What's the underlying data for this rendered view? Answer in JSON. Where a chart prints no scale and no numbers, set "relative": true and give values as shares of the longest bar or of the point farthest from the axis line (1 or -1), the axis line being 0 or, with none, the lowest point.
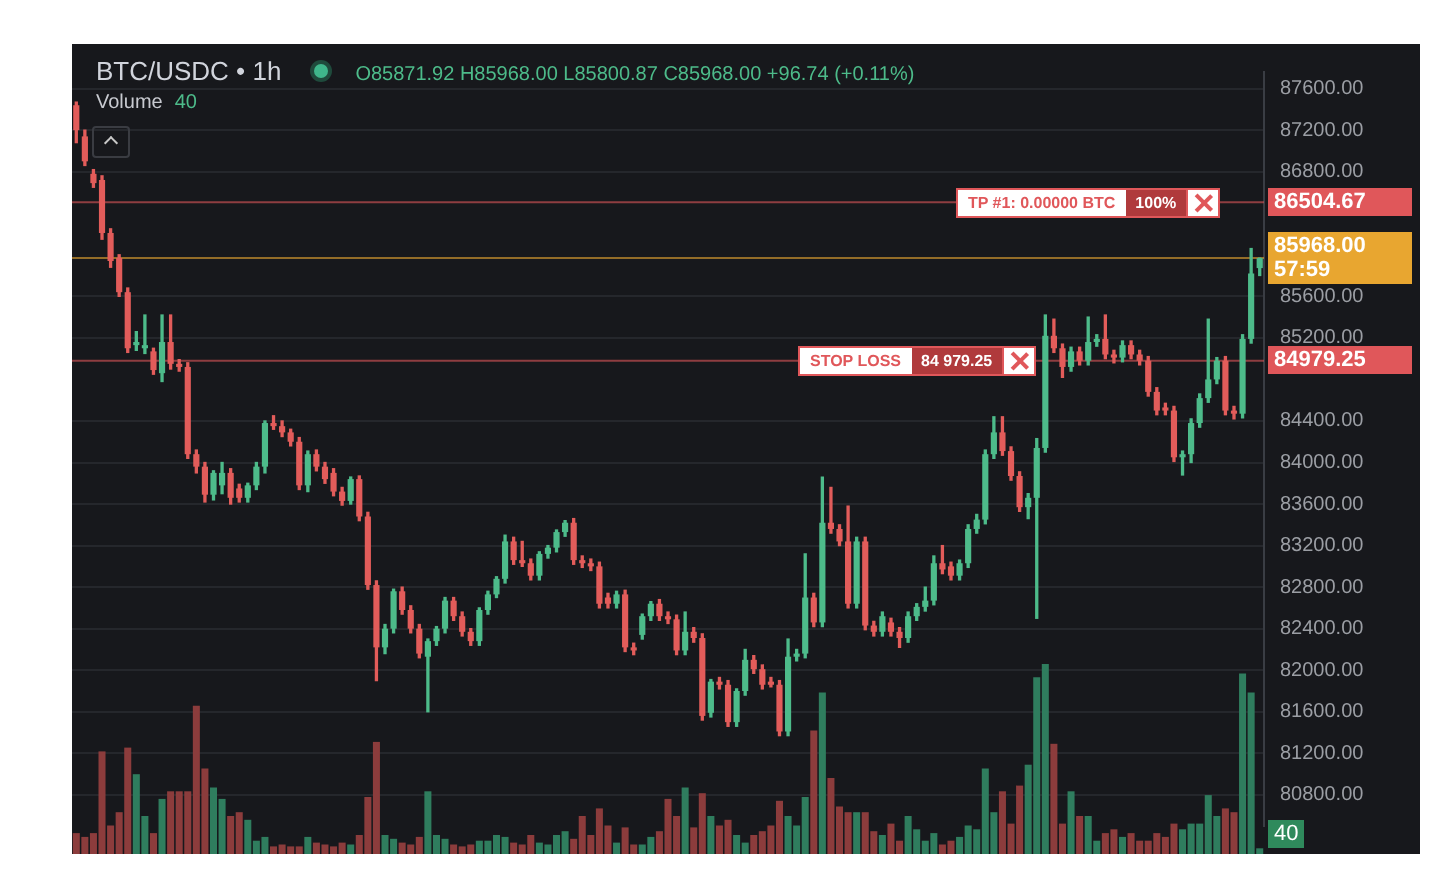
{
  "chart_data": [
    {
      "type": "candlestick",
      "title": "BTC/USDC • 1h",
      "subtitle": "O85871.92 H85968.00 L85800.87 C85968.00 +96.74 (+0.11%)",
      "categories": [
        null,
        null,
        null,
        null,
        null,
        null,
        null,
        null,
        null,
        null,
        null,
        null,
        null,
        null,
        null,
        null,
        null,
        null,
        null,
        null,
        null,
        null,
        null,
        null,
        null,
        null,
        null,
        null,
        null,
        null,
        null,
        null,
        null,
        null,
        null,
        null,
        null,
        null,
        null,
        null,
        null,
        null,
        null,
        null,
        null,
        null,
        null,
        null,
        null,
        null,
        null,
        null,
        null,
        null,
        null,
        null,
        null,
        null,
        null,
        null,
        null,
        null,
        null,
        null,
        null,
        null,
        null,
        null,
        null,
        null,
        null,
        null,
        null,
        null,
        null,
        null,
        null,
        null,
        null,
        null,
        null,
        null,
        null,
        null,
        null,
        null,
        null,
        null,
        null,
        null,
        null,
        null,
        null,
        null,
        null,
        null,
        null,
        null,
        null,
        null,
        null,
        null,
        null,
        null,
        null,
        null,
        null,
        null,
        null,
        null,
        null,
        null,
        null,
        null,
        null,
        null,
        null,
        null,
        null,
        null,
        null,
        null,
        null,
        null,
        null,
        null,
        null,
        null,
        null,
        null,
        null,
        null,
        null,
        null,
        null,
        null,
        null,
        null,
        null
      ],
      "ohlc": [
        [
          87440,
          87470,
          87080,
          87200
        ],
        [
          87140,
          87200,
          86860,
          86900
        ],
        [
          86780,
          86820,
          86650,
          86690
        ],
        [
          86720,
          86760,
          86150,
          86210
        ],
        [
          86210,
          86250,
          85880,
          85940
        ],
        [
          85970,
          86000,
          85600,
          85640
        ],
        [
          85640,
          85680,
          85060,
          85100
        ],
        [
          85130,
          85260,
          85080,
          85160
        ],
        [
          85100,
          85420,
          85050,
          85130
        ],
        [
          85070,
          85100,
          84850,
          84890
        ],
        [
          84860,
          85420,
          84780,
          85160
        ],
        [
          85160,
          85420,
          84900,
          84950
        ],
        [
          84950,
          84990,
          84880,
          84920
        ],
        [
          84920,
          84960,
          84040,
          84080
        ],
        [
          84080,
          84120,
          83900,
          83960
        ],
        [
          83960,
          84000,
          83620,
          83690
        ],
        [
          83690,
          83920,
          83640,
          83900
        ],
        [
          83780,
          84000,
          83700,
          83900
        ],
        [
          83900,
          83940,
          83600,
          83660
        ],
        [
          83750,
          83790,
          83620,
          83660
        ],
        [
          83660,
          83800,
          83620,
          83780
        ],
        [
          83780,
          84000,
          83740,
          83960
        ],
        [
          83960,
          84400,
          83900,
          84380
        ],
        [
          84380,
          84450,
          84320,
          84350
        ],
        [
          84350,
          84400,
          84250,
          84290
        ],
        [
          84290,
          84320,
          84160,
          84200
        ],
        [
          84200,
          84240,
          83740,
          83780
        ],
        [
          83780,
          84110,
          83720,
          84080
        ],
        [
          84080,
          84120,
          83920,
          83960
        ],
        [
          83960,
          84000,
          83800,
          83840
        ],
        [
          83900,
          83940,
          83680,
          83720
        ],
        [
          83720,
          83760,
          83590,
          83630
        ],
        [
          83630,
          83860,
          83600,
          83840
        ],
        [
          83840,
          83870,
          83440,
          83480
        ],
        [
          83480,
          83520,
          82780,
          82820
        ],
        [
          82820,
          82860,
          81900,
          82220
        ],
        [
          82220,
          82440,
          82160,
          82400
        ],
        [
          82400,
          82780,
          82360,
          82760
        ],
        [
          82760,
          82800,
          82540,
          82580
        ],
        [
          82580,
          82620,
          82360,
          82400
        ],
        [
          82400,
          82440,
          82120,
          82160
        ],
        [
          82130,
          82300,
          81600,
          82280
        ],
        [
          82280,
          82420,
          82240,
          82400
        ],
        [
          82400,
          82700,
          82360,
          82670
        ],
        [
          82670,
          82700,
          82480,
          82520
        ],
        [
          82520,
          82560,
          82330,
          82370
        ],
        [
          82370,
          82400,
          82240,
          82280
        ],
        [
          82280,
          82600,
          82240,
          82580
        ],
        [
          82580,
          82760,
          82540,
          82730
        ],
        [
          82730,
          82900,
          82700,
          82880
        ],
        [
          82880,
          83300,
          82840,
          83240
        ],
        [
          83240,
          83280,
          83020,
          83060
        ],
        [
          83060,
          83240,
          83000,
          83030
        ],
        [
          83030,
          83070,
          82870,
          82910
        ],
        [
          82910,
          83140,
          82870,
          83120
        ],
        [
          83120,
          83200,
          83080,
          83180
        ],
        [
          83180,
          83350,
          83140,
          83330
        ],
        [
          83330,
          83440,
          83290,
          83420
        ],
        [
          83420,
          83460,
          83020,
          83060
        ],
        [
          83060,
          83100,
          82990,
          83030
        ],
        [
          83030,
          83070,
          82960,
          83000
        ],
        [
          83000,
          83040,
          82600,
          82640
        ],
        [
          82700,
          82740,
          82600,
          82640
        ],
        [
          82640,
          82760,
          82600,
          82730
        ],
        [
          82730,
          82770,
          82180,
          82220
        ],
        [
          82220,
          82260,
          82150,
          82190
        ],
        [
          82340,
          82540,
          82300,
          82520
        ],
        [
          82520,
          82660,
          82480,
          82640
        ],
        [
          82640,
          82680,
          82480,
          82520
        ],
        [
          82520,
          82560,
          82450,
          82490
        ],
        [
          82490,
          82530,
          82150,
          82190
        ],
        [
          82190,
          82560,
          82150,
          82370
        ],
        [
          82370,
          82410,
          82270,
          82310
        ],
        [
          82310,
          82350,
          81520,
          81560
        ],
        [
          81590,
          81910,
          81550,
          81890
        ],
        [
          81890,
          81930,
          81820,
          81860
        ],
        [
          81860,
          81900,
          81460,
          81500
        ],
        [
          81500,
          81820,
          81460,
          81800
        ],
        [
          81800,
          82200,
          81760,
          82100
        ],
        [
          82100,
          82140,
          81970,
          82010
        ],
        [
          82010,
          82050,
          81820,
          81860
        ],
        [
          81890,
          81930,
          81840,
          81860
        ],
        [
          81860,
          81900,
          81370,
          81410
        ],
        [
          81410,
          82300,
          81370,
          82130
        ],
        [
          82130,
          82200,
          82090,
          82160
        ],
        [
          82160,
          83120,
          82120,
          82700
        ],
        [
          82700,
          82740,
          82420,
          82460
        ],
        [
          82460,
          83860,
          82420,
          83420
        ],
        [
          83420,
          83760,
          83320,
          83360
        ],
        [
          83360,
          83400,
          83200,
          83240
        ],
        [
          83240,
          83580,
          82600,
          82640
        ],
        [
          82640,
          83280,
          82600,
          83240
        ],
        [
          83240,
          83280,
          82390,
          82430
        ],
        [
          82430,
          82470,
          82330,
          82370
        ],
        [
          82370,
          82560,
          82330,
          82520
        ],
        [
          82460,
          82500,
          82330,
          82370
        ],
        [
          82370,
          82410,
          82220,
          82310
        ],
        [
          82310,
          82560,
          82270,
          82520
        ],
        [
          82520,
          82640,
          82480,
          82610
        ],
        [
          82610,
          82800,
          82570,
          82670
        ],
        [
          82670,
          83100,
          82630,
          83030
        ],
        [
          83030,
          83200,
          82930,
          82970
        ],
        [
          83000,
          83040,
          82870,
          82910
        ],
        [
          82910,
          83060,
          82870,
          83030
        ],
        [
          83030,
          83400,
          82990,
          83360
        ],
        [
          83360,
          83500,
          83320,
          83450
        ],
        [
          83450,
          84120,
          83410,
          84080
        ],
        [
          84080,
          84440,
          84040,
          84290
        ],
        [
          84290,
          84440,
          84070,
          84110
        ],
        [
          84110,
          84150,
          83830,
          83870
        ],
        [
          83870,
          83910,
          83530,
          83570
        ],
        [
          83570,
          83700,
          83460,
          83660
        ],
        [
          83660,
          84230,
          82500,
          84140
        ],
        [
          84140,
          85420,
          84100,
          85220
        ],
        [
          85220,
          85380,
          85060,
          85100
        ],
        [
          85100,
          85140,
          84820,
          84920
        ],
        [
          84920,
          85110,
          84880,
          85070
        ],
        [
          85070,
          85110,
          84940,
          84980
        ],
        [
          84980,
          85400,
          84940,
          85160
        ],
        [
          85160,
          85230,
          85120,
          85190
        ],
        [
          85190,
          85420,
          85000,
          85040
        ],
        [
          85040,
          85080,
          84960,
          85010
        ],
        [
          85010,
          85170,
          84970,
          85130
        ],
        [
          85130,
          85170,
          85000,
          85040
        ],
        [
          85040,
          85080,
          84940,
          84980
        ],
        [
          84980,
          85020,
          84640,
          84680
        ],
        [
          84680,
          84720,
          84460,
          84500
        ],
        [
          84530,
          84570,
          84460,
          84500
        ],
        [
          84500,
          84540,
          84010,
          84050
        ],
        [
          84050,
          84110,
          83880,
          84080
        ],
        [
          84080,
          84420,
          84000,
          84380
        ],
        [
          84380,
          84660,
          84340,
          84620
        ],
        [
          84620,
          85380,
          84580,
          84800
        ],
        [
          84800,
          85010,
          84760,
          84980
        ],
        [
          84980,
          85020,
          84460,
          84500
        ],
        [
          84500,
          84540,
          84420,
          84470
        ],
        [
          84470,
          85230,
          84430,
          85190
        ],
        [
          85190,
          86060,
          85150,
          85820
        ],
        [
          85871.92,
          85968,
          85800.87,
          85968
        ]
      ],
      "colors": [
        "#e25c5a",
        "#e25c5a",
        "#e25c5a",
        "#e25c5a",
        "#e25c5a",
        "#e25c5a",
        "#e25c5a",
        "#4dbb8a",
        "#4dbb8a",
        "#e25c5a",
        "#4dbb8a",
        "#e25c5a",
        "#e25c5a",
        "#e25c5a",
        "#e25c5a",
        "#e25c5a",
        "#4dbb8a",
        "#4dbb8a",
        "#e25c5a",
        "#e25c5a",
        "#4dbb8a",
        "#4dbb8a",
        "#4dbb8a",
        "#e25c5a",
        "#e25c5a",
        "#e25c5a",
        "#e25c5a",
        "#4dbb8a",
        "#e25c5a",
        "#e25c5a",
        "#e25c5a",
        "#e25c5a",
        "#4dbb8a",
        "#e25c5a",
        "#e25c5a",
        "#e25c5a",
        "#4dbb8a",
        "#4dbb8a",
        "#e25c5a",
        "#e25c5a",
        "#e25c5a",
        "#4dbb8a",
        "#4dbb8a",
        "#4dbb8a",
        "#e25c5a",
        "#e25c5a",
        "#e25c5a",
        "#4dbb8a",
        "#4dbb8a",
        "#4dbb8a",
        "#4dbb8a",
        "#e25c5a",
        "#e25c5a",
        "#e25c5a",
        "#4dbb8a",
        "#4dbb8a",
        "#4dbb8a",
        "#4dbb8a",
        "#e25c5a",
        "#e25c5a",
        "#e25c5a",
        "#e25c5a",
        "#e25c5a",
        "#4dbb8a",
        "#e25c5a",
        "#e25c5a",
        "#4dbb8a",
        "#4dbb8a",
        "#e25c5a",
        "#e25c5a",
        "#e25c5a",
        "#4dbb8a",
        "#e25c5a",
        "#e25c5a",
        "#4dbb8a",
        "#e25c5a",
        "#e25c5a",
        "#4dbb8a",
        "#4dbb8a",
        "#e25c5a",
        "#e25c5a",
        "#e25c5a",
        "#e25c5a",
        "#4dbb8a",
        "#4dbb8a",
        "#4dbb8a",
        "#e25c5a",
        "#4dbb8a",
        "#e25c5a",
        "#e25c5a",
        "#e25c5a",
        "#4dbb8a",
        "#e25c5a",
        "#e25c5a",
        "#4dbb8a",
        "#e25c5a",
        "#e25c5a",
        "#4dbb8a",
        "#4dbb8a",
        "#4dbb8a",
        "#4dbb8a",
        "#e25c5a",
        "#e25c5a",
        "#4dbb8a",
        "#4dbb8a",
        "#4dbb8a",
        "#4dbb8a",
        "#4dbb8a",
        "#e25c5a",
        "#e25c5a",
        "#e25c5a",
        "#4dbb8a",
        "#4dbb8a",
        "#4dbb8a",
        "#e25c5a",
        "#e25c5a",
        "#4dbb8a",
        "#e25c5a",
        "#4dbb8a",
        "#4dbb8a",
        "#e25c5a",
        "#e25c5a",
        "#4dbb8a",
        "#e25c5a",
        "#e25c5a",
        "#e25c5a",
        "#e25c5a",
        "#e25c5a",
        "#e25c5a",
        "#4dbb8a",
        "#4dbb8a",
        "#4dbb8a",
        "#4dbb8a",
        "#4dbb8a",
        "#e25c5a",
        "#e25c5a",
        "#4dbb8a",
        "#4dbb8a",
        "#4dbb8a"
      ],
      "ylim": [
        80500,
        87760
      ],
      "yticks": [
        {
          "value": 80800,
          "label": "80800.00"
        },
        {
          "value": 81200,
          "label": "81200.00"
        },
        {
          "value": 81600,
          "label": "81600.00"
        },
        {
          "value": 82000,
          "label": "82000.00"
        },
        {
          "value": 82400,
          "label": "82400.00"
        },
        {
          "value": 82800,
          "label": "82800.00"
        },
        {
          "value": 83200,
          "label": "83200.00"
        },
        {
          "value": 83600,
          "label": "83600.00"
        },
        {
          "value": 84000,
          "label": "84000.00"
        },
        {
          "value": 84400,
          "label": "84400.00"
        },
        {
          "value": 85200,
          "label": "85200.00"
        },
        {
          "value": 85600,
          "label": "85600.00"
        },
        {
          "value": 86800,
          "label": "86800.00"
        },
        {
          "value": 87200,
          "label": "87200.00"
        },
        {
          "value": 87600,
          "label": "87600.00"
        }
      ],
      "tick_labels": "y",
      "grid": "y",
      "ref_lines": [
        {
          "axis": "y",
          "value": 86504.67,
          "label": "86504.67",
          "color": "#e0575a"
        },
        {
          "axis": "y",
          "value": 85968,
          "label": "85968.00\n57:59",
          "color": "#e8a630"
        },
        {
          "axis": "y",
          "value": 84979.25,
          "label": "84979.25",
          "color": "#e0575a"
        }
      ],
      "annotations": [
        {
          "text": "TP #1: 0.00000 BTC",
          "y": 86504.67
        },
        {
          "text": "100%",
          "y": 86504.67
        },
        {
          "text": "STOP LOSS",
          "y": 84979.25
        },
        {
          "text": "84 979.25",
          "y": 84979.25
        }
      ]
    },
    {
      "type": "bar",
      "title": "Volume",
      "relative": true,
      "tick_labels": false,
      "categories": [
        null,
        null,
        null,
        null,
        null,
        null,
        null,
        null,
        null,
        null,
        null,
        null,
        null,
        null,
        null,
        null,
        null,
        null,
        null,
        null,
        null,
        null,
        null,
        null,
        null,
        null,
        null,
        null,
        null,
        null,
        null,
        null,
        null,
        null,
        null,
        null,
        null,
        null,
        null,
        null,
        null,
        null,
        null,
        null,
        null,
        null,
        null,
        null,
        null,
        null,
        null,
        null,
        null,
        null,
        null,
        null,
        null,
        null,
        null,
        null,
        null,
        null,
        null,
        null,
        null,
        null,
        null,
        null,
        null,
        null,
        null,
        null,
        null,
        null,
        null,
        null,
        null,
        null,
        null,
        null,
        null,
        null,
        null,
        null,
        null,
        null,
        null,
        null,
        null,
        null,
        null,
        null,
        null,
        null,
        null,
        null,
        null,
        null,
        null,
        null,
        null,
        null,
        null,
        null,
        null,
        null,
        null,
        null,
        null,
        null,
        null,
        null,
        null,
        null,
        null,
        null,
        null,
        null,
        null,
        null,
        null,
        null,
        null,
        null,
        null,
        null,
        null,
        null,
        null,
        null,
        null,
        null,
        null,
        null,
        null,
        null,
        null,
        null,
        null
      ],
      "values": [
        0.11,
        0.09,
        0.11,
        0.54,
        0.15,
        0.22,
        0.56,
        0.42,
        0.2,
        0.11,
        0.29,
        0.33,
        0.33,
        0.33,
        0.78,
        0.45,
        0.35,
        0.29,
        0.2,
        0.22,
        0.18,
        0.07,
        0.09,
        0.04,
        0.05,
        0.04,
        0.04,
        0.09,
        0.06,
        0.05,
        0.04,
        0.06,
        0.05,
        0.1,
        0.3,
        0.59,
        0.1,
        0.08,
        0.06,
        0.05,
        0.09,
        0.33,
        0.1,
        0.08,
        0.05,
        0.04,
        0.05,
        0.07,
        0.07,
        0.1,
        0.09,
        0.06,
        0.05,
        0.1,
        0.06,
        0.05,
        0.1,
        0.12,
        0.08,
        0.2,
        0.1,
        0.24,
        0.15,
        0.06,
        0.14,
        0.05,
        0.05,
        0.09,
        0.12,
        0.29,
        0.2,
        0.35,
        0.14,
        0.32,
        0.2,
        0.15,
        0.18,
        0.1,
        0.06,
        0.1,
        0.12,
        0.15,
        0.28,
        0.2,
        0.15,
        0.3,
        0.65,
        0.85,
        0.4,
        0.25,
        0.22,
        0.22,
        0.22,
        0.12,
        0.1,
        0.16,
        0.07,
        0.2,
        0.13,
        0.07,
        0.11,
        0.05,
        0.07,
        0.09,
        0.15,
        0.13,
        0.45,
        0.22,
        0.33,
        0.16,
        0.36,
        0.47,
        0.93,
        1,
        0.58,
        0.16,
        0.33,
        0.2,
        0.2,
        0.07,
        0.11,
        0.13,
        0.09,
        0.11,
        0.07,
        0.07,
        0.11,
        0.09,
        0.16,
        0.13,
        0.16,
        0.16,
        0.31,
        0.2,
        0.24,
        0.22,
        0.95,
        0.85,
        0.03
      ],
      "colors": [
        "#8c3c3c",
        "#8c3c3c",
        "#8c3c3c",
        "#8c3c3c",
        "#8c3c3c",
        "#8c3c3c",
        "#8c3c3c",
        "#2f7d5e",
        "#2f7d5e",
        "#8c3c3c",
        "#2f7d5e",
        "#8c3c3c",
        "#8c3c3c",
        "#8c3c3c",
        "#8c3c3c",
        "#8c3c3c",
        "#2f7d5e",
        "#2f7d5e",
        "#8c3c3c",
        "#8c3c3c",
        "#2f7d5e",
        "#2f7d5e",
        "#2f7d5e",
        "#8c3c3c",
        "#8c3c3c",
        "#8c3c3c",
        "#8c3c3c",
        "#2f7d5e",
        "#8c3c3c",
        "#8c3c3c",
        "#8c3c3c",
        "#8c3c3c",
        "#2f7d5e",
        "#8c3c3c",
        "#8c3c3c",
        "#8c3c3c",
        "#2f7d5e",
        "#2f7d5e",
        "#8c3c3c",
        "#8c3c3c",
        "#8c3c3c",
        "#2f7d5e",
        "#2f7d5e",
        "#2f7d5e",
        "#8c3c3c",
        "#8c3c3c",
        "#8c3c3c",
        "#2f7d5e",
        "#2f7d5e",
        "#2f7d5e",
        "#2f7d5e",
        "#8c3c3c",
        "#8c3c3c",
        "#8c3c3c",
        "#2f7d5e",
        "#2f7d5e",
        "#2f7d5e",
        "#2f7d5e",
        "#8c3c3c",
        "#8c3c3c",
        "#8c3c3c",
        "#8c3c3c",
        "#8c3c3c",
        "#2f7d5e",
        "#8c3c3c",
        "#8c3c3c",
        "#2f7d5e",
        "#2f7d5e",
        "#8c3c3c",
        "#8c3c3c",
        "#8c3c3c",
        "#2f7d5e",
        "#8c3c3c",
        "#8c3c3c",
        "#2f7d5e",
        "#8c3c3c",
        "#8c3c3c",
        "#2f7d5e",
        "#2f7d5e",
        "#8c3c3c",
        "#8c3c3c",
        "#8c3c3c",
        "#8c3c3c",
        "#2f7d5e",
        "#2f7d5e",
        "#2f7d5e",
        "#8c3c3c",
        "#2f7d5e",
        "#8c3c3c",
        "#8c3c3c",
        "#8c3c3c",
        "#2f7d5e",
        "#8c3c3c",
        "#8c3c3c",
        "#2f7d5e",
        "#8c3c3c",
        "#8c3c3c",
        "#2f7d5e",
        "#2f7d5e",
        "#2f7d5e",
        "#2f7d5e",
        "#8c3c3c",
        "#8c3c3c",
        "#2f7d5e",
        "#2f7d5e",
        "#2f7d5e",
        "#2f7d5e",
        "#2f7d5e",
        "#8c3c3c",
        "#8c3c3c",
        "#8c3c3c",
        "#2f7d5e",
        "#2f7d5e",
        "#2f7d5e",
        "#8c3c3c",
        "#8c3c3c",
        "#2f7d5e",
        "#8c3c3c",
        "#2f7d5e",
        "#2f7d5e",
        "#8c3c3c",
        "#8c3c3c",
        "#2f7d5e",
        "#8c3c3c",
        "#8c3c3c",
        "#8c3c3c",
        "#8c3c3c",
        "#8c3c3c",
        "#8c3c3c",
        "#2f7d5e",
        "#2f7d5e",
        "#2f7d5e",
        "#2f7d5e",
        "#2f7d5e",
        "#8c3c3c",
        "#8c3c3c",
        "#2f7d5e",
        "#2f7d5e",
        "#2f7d5e"
      ],
      "annotations": [
        "40",
        "40"
      ]
    }
  ]
}
